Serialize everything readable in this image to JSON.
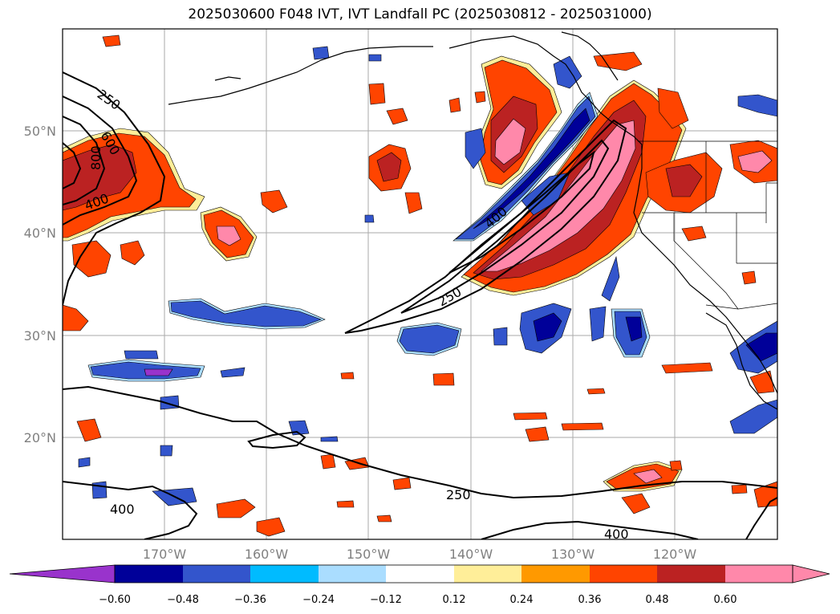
{
  "title": "2025030600 F048 IVT, IVT Landfall PC (2025030812 - 2025031000)",
  "map": {
    "lat_ticks": [
      "50°N",
      "40°N",
      "30°N",
      "20°N"
    ],
    "lon_ticks": [
      "170°W",
      "160°W",
      "150°W",
      "140°W",
      "130°W",
      "120°W"
    ],
    "contour_labels": [
      "250",
      "600",
      "800",
      "400",
      "400",
      "250",
      "250",
      "400",
      "400"
    ],
    "grid": true
  },
  "colorbar": {
    "tick_labels": [
      "−0.60",
      "−0.48",
      "−0.36",
      "−0.24",
      "−0.12",
      "0.12",
      "0.24",
      "0.36",
      "0.48",
      "0.60"
    ],
    "colors": [
      "#9933cc",
      "#000099",
      "#3355cc",
      "#00bbff",
      "#aaddff",
      "#ffffff",
      "#ffee99",
      "#ff9900",
      "#ff4400",
      "#bb2222",
      "#ff88aa"
    ],
    "extend": "both"
  },
  "colors": {
    "positive_low": "#ffee99",
    "positive_mid": "#ff9900",
    "positive_orange_red": "#ff4400",
    "positive_high": "#bb2222",
    "positive_max": "#ff88aa",
    "negative_light": "#aaddff",
    "negative_cyan": "#00bbff",
    "negative_blue": "#3355cc",
    "negative_navy": "#000099",
    "negative_max": "#9933cc",
    "contour": "#000000",
    "grid": "#aaaaaa"
  }
}
